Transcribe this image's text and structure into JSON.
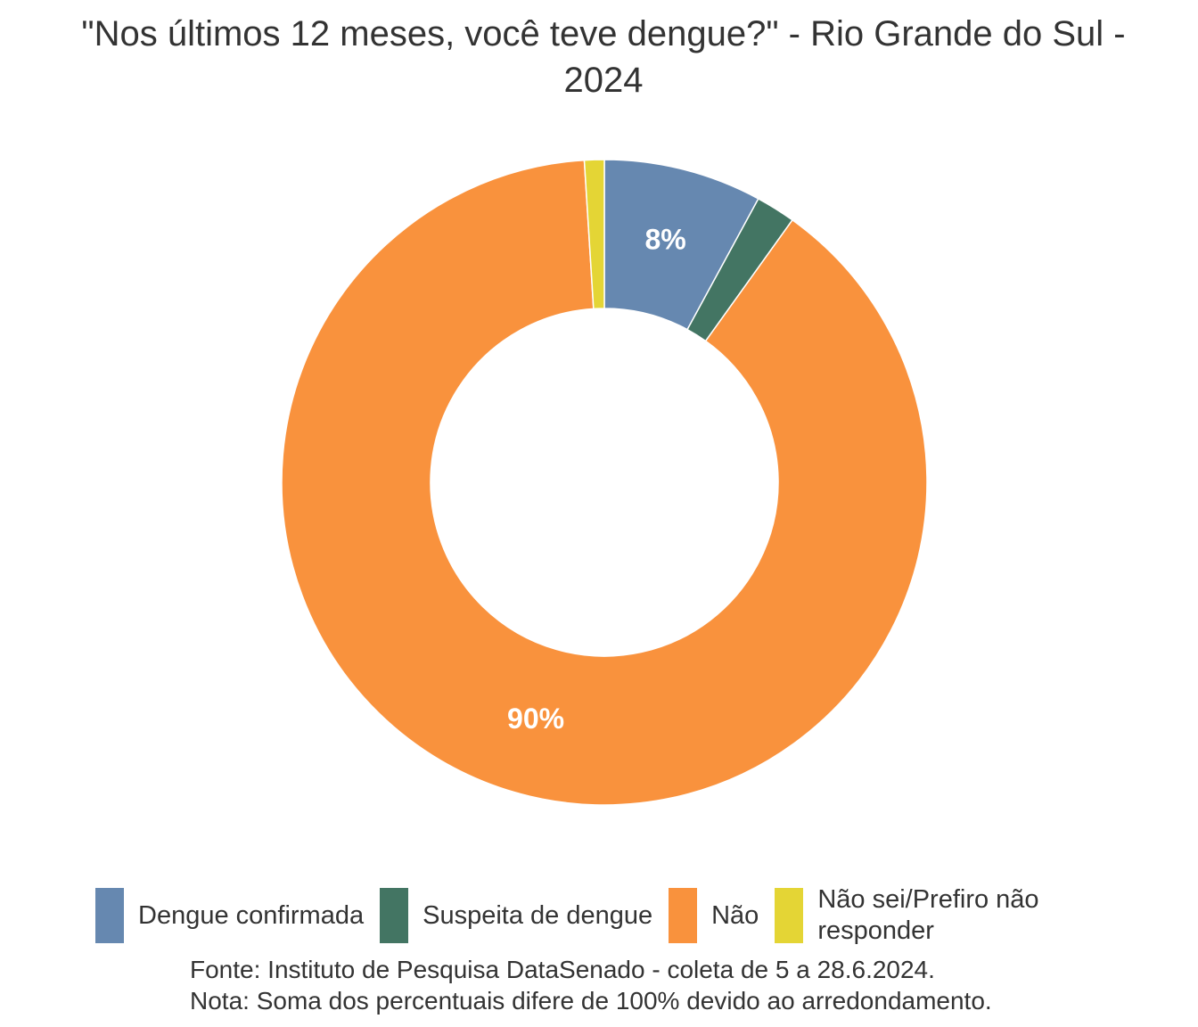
{
  "chart_data": {
    "type": "pie",
    "title": "\"Nos últimos 12 meses, você teve dengue?\" - Rio Grande do Sul - 2024",
    "categories": [
      "Dengue confirmada",
      "Suspeita de dengue",
      "Não",
      "Não sei/Prefiro não responder"
    ],
    "values": [
      8,
      2,
      90,
      1
    ],
    "value_labels": [
      "8%",
      null,
      "90%",
      null
    ],
    "colors": [
      "#6688b0",
      "#437563",
      "#f9923d",
      "#e4d535"
    ],
    "notes": [
      "Fonte: Instituto de Pesquisa DataSenado - coleta de 5 a 28.6.2024.",
      "Nota: Soma dos percentuais difere de 100% devido ao arredondamento."
    ]
  }
}
